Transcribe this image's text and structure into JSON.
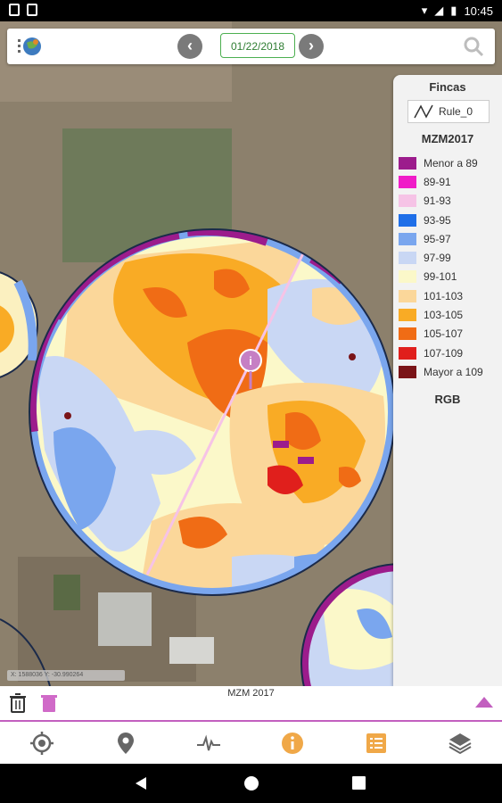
{
  "status": {
    "time": "10:45"
  },
  "toolbar": {
    "date": "01/22/2018",
    "prev_icon": "chevron-left-icon",
    "next_icon": "chevron-right-icon",
    "search_icon": "search-icon"
  },
  "legend": {
    "layer_title": "Fincas",
    "rule_label": "Rule_0",
    "index_title": "MZM2017",
    "items": [
      {
        "label": "Menor a 89",
        "color": "#9c1c8c"
      },
      {
        "label": "89-91",
        "color": "#f01cc8"
      },
      {
        "label": "91-93",
        "color": "#f6c3e6"
      },
      {
        "label": "93-95",
        "color": "#1f6fe8"
      },
      {
        "label": "95-97",
        "color": "#7aa6ee"
      },
      {
        "label": "97-99",
        "color": "#c9d7f4"
      },
      {
        "label": "99-101",
        "color": "#fbf8c9"
      },
      {
        "label": "101-103",
        "color": "#fbd79a"
      },
      {
        "label": "103-105",
        "color": "#f9ab25"
      },
      {
        "label": "105-107",
        "color": "#f06c15"
      },
      {
        "label": "107-109",
        "color": "#e01f1c"
      },
      {
        "label": "Mayor a 109",
        "color": "#7a1418"
      }
    ],
    "rgb_label": "RGB"
  },
  "map": {
    "coords": "X: 1588036  Y: -30.990264"
  },
  "bottom": {
    "layer_name": "MZM 2017"
  },
  "nav": {
    "items": [
      "location-target-icon",
      "map-pin-icon",
      "pulse-chart-icon",
      "info-icon",
      "list-icon",
      "layers-icon"
    ]
  }
}
